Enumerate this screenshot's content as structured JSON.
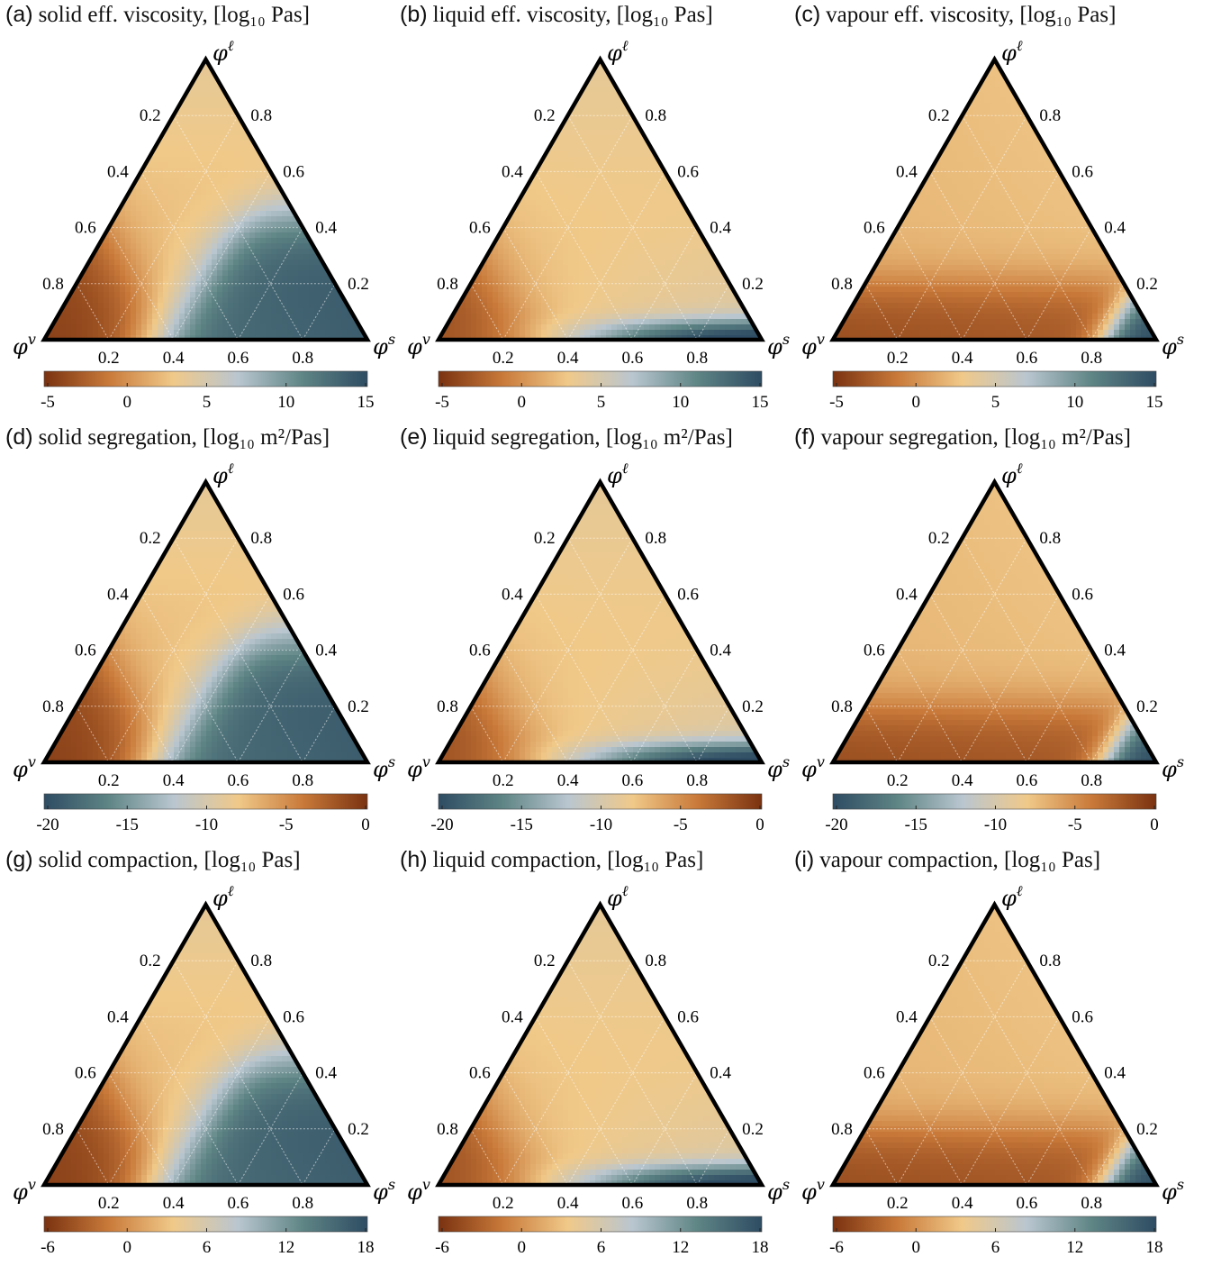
{
  "chart_data": [
    {
      "id": "a",
      "type": "heatmap",
      "panel_label": "(a)",
      "title": "solid eff. viscosity, [log₁₀ Pas]",
      "colorbar": {
        "ticks": [
          "-5",
          "0",
          "5",
          "10",
          "15"
        ],
        "direction": "orange-to-blue"
      },
      "map": "solid"
    },
    {
      "id": "b",
      "type": "heatmap",
      "panel_label": "(b)",
      "title": "liquid eff. viscosity, [log₁₀ Pas]",
      "colorbar": {
        "ticks": [
          "-5",
          "0",
          "5",
          "10",
          "15"
        ],
        "direction": "orange-to-blue"
      },
      "map": "liquid"
    },
    {
      "id": "c",
      "type": "heatmap",
      "panel_label": "(c)",
      "title": "vapour eff. viscosity, [log₁₀ Pas]",
      "colorbar": {
        "ticks": [
          "-5",
          "0",
          "5",
          "10",
          "15"
        ],
        "direction": "orange-to-blue"
      },
      "map": "vapour"
    },
    {
      "id": "d",
      "type": "heatmap",
      "panel_label": "(d)",
      "title": "solid segregation, [log₁₀ m²/Pas]",
      "colorbar": {
        "ticks": [
          "-20",
          "-15",
          "-10",
          "-5",
          "0"
        ],
        "direction": "blue-to-orange"
      },
      "map": "solid"
    },
    {
      "id": "e",
      "type": "heatmap",
      "panel_label": "(e)",
      "title": "liquid segregation, [log₁₀ m²/Pas]",
      "colorbar": {
        "ticks": [
          "-20",
          "-15",
          "-10",
          "-5",
          "0"
        ],
        "direction": "blue-to-orange"
      },
      "map": "liquid"
    },
    {
      "id": "f",
      "type": "heatmap",
      "panel_label": "(f)",
      "title": "vapour segregation, [log₁₀ m²/Pas]",
      "colorbar": {
        "ticks": [
          "-20",
          "-15",
          "-10",
          "-5",
          "0"
        ],
        "direction": "blue-to-orange"
      },
      "map": "vapour"
    },
    {
      "id": "g",
      "type": "heatmap",
      "panel_label": "(g)",
      "title": "solid compaction, [log₁₀ Pas]",
      "colorbar": {
        "ticks": [
          "-6",
          "0",
          "6",
          "12",
          "18"
        ],
        "direction": "orange-to-blue"
      },
      "map": "solid"
    },
    {
      "id": "h",
      "type": "heatmap",
      "panel_label": "(h)",
      "title": "liquid compaction, [log₁₀ Pas]",
      "colorbar": {
        "ticks": [
          "-6",
          "0",
          "6",
          "12",
          "18"
        ],
        "direction": "orange-to-blue"
      },
      "map": "liquid"
    },
    {
      "id": "i",
      "type": "heatmap",
      "panel_label": "(i)",
      "title": "vapour compaction, [log₁₀ Pas]",
      "colorbar": {
        "ticks": [
          "-6",
          "0",
          "6",
          "12",
          "18"
        ],
        "direction": "orange-to-blue"
      },
      "map": "vapour"
    }
  ],
  "ternary_axes": {
    "top_vertex": "φℓ",
    "left_vertex": "φv",
    "right_vertex": "φs",
    "left_edge_ticks": [
      "0.2",
      "0.4",
      "0.6",
      "0.8"
    ],
    "right_edge_ticks": [
      "0.8",
      "0.6",
      "0.4",
      "0.2"
    ],
    "bottom_edge_ticks": [
      "0.2",
      "0.4",
      "0.6",
      "0.8"
    ]
  },
  "colormap": [
    "#7a3210",
    "#c97a3a",
    "#f0c989",
    "#b9c6d0",
    "#5f8585",
    "#2e4c63"
  ]
}
